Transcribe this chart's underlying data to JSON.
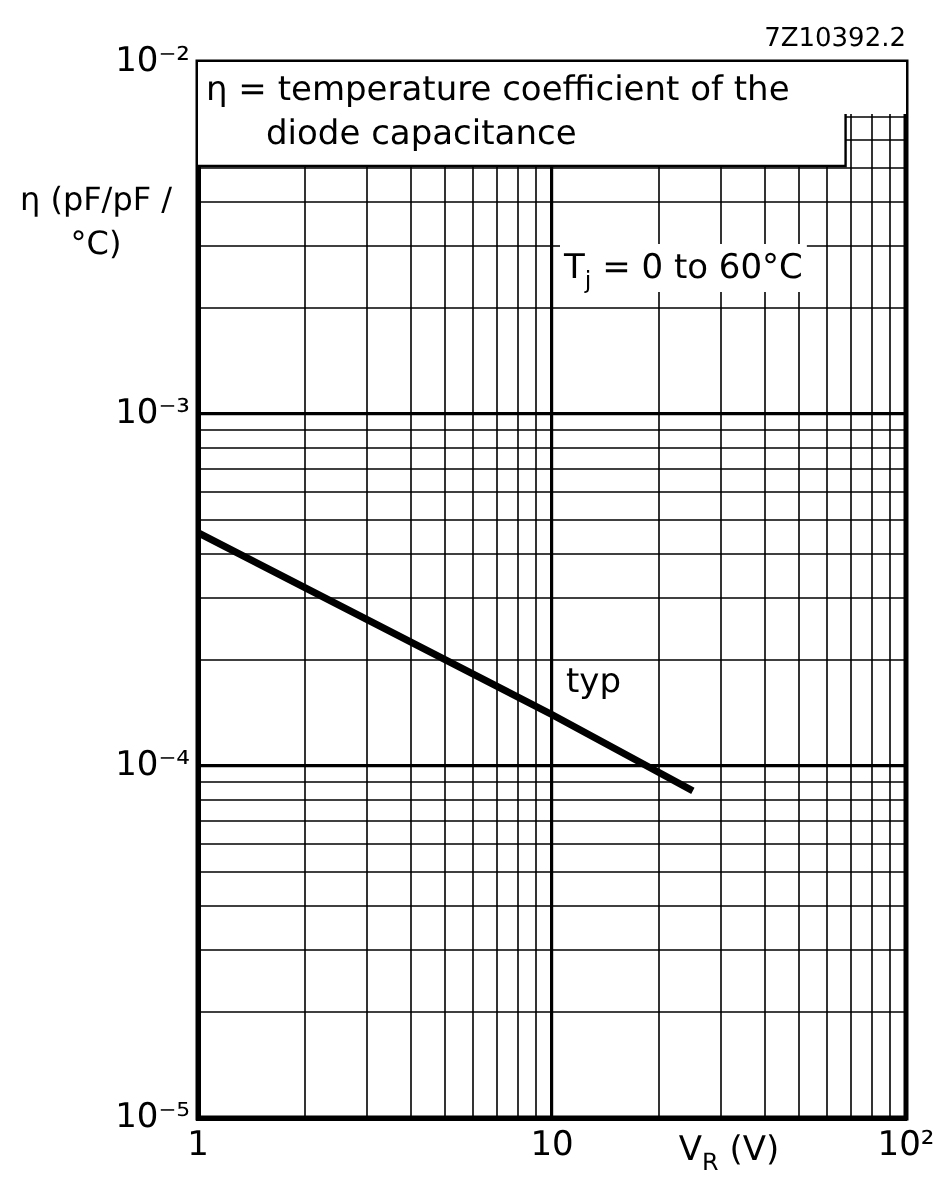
{
  "chart_data": {
    "type": "line",
    "xlabel": "V$_{R}$ (V)",
    "ylabel": "η (pF/pF / °C)",
    "annotations": [
      "7Z10392.2",
      "η = temperature coefficient of the diode capacitance",
      "T$_{j}$ = 0 to 60°C",
      "typ"
    ],
    "series": [
      {
        "color": "#000000",
        "x": [
          1,
          10,
          25
        ],
        "values": [
          0.00046,
          0.00014,
          8.5e-05
        ]
      }
    ],
    "log": "xy",
    "grid": true,
    "legend": false,
    "marker": "none",
    "line_style": "solid",
    "xlim": [
      1,
      100
    ],
    "ylim": [
      1e-05,
      0.01
    ],
    "xticks": [
      1,
      {
        "value": 2,
        "label": null
      },
      {
        "value": 3,
        "label": null
      },
      {
        "value": 4,
        "label": null
      },
      {
        "value": 5,
        "label": null
      },
      {
        "value": 6,
        "label": null
      },
      {
        "value": 7,
        "label": null
      },
      {
        "value": 8,
        "label": null
      },
      {
        "value": 9,
        "label": null
      },
      10,
      {
        "value": 20,
        "label": null
      },
      {
        "value": 30,
        "label": null
      },
      {
        "value": 40,
        "label": null
      },
      {
        "value": 50,
        "label": null
      },
      {
        "value": 60,
        "label": null
      },
      {
        "value": 70,
        "label": null
      },
      {
        "value": 80,
        "label": null
      },
      {
        "value": 90,
        "label": null
      },
      {
        "value": 100,
        "label": "10²"
      }
    ],
    "yticks": [
      {
        "value": 1e-05,
        "label": "10⁻⁵"
      },
      {
        "value": 2e-05,
        "label": null
      },
      {
        "value": 3e-05,
        "label": null
      },
      {
        "value": 4e-05,
        "label": null
      },
      {
        "value": 5e-05,
        "label": null
      },
      {
        "value": 6e-05,
        "label": null
      },
      {
        "value": 7e-05,
        "label": null
      },
      {
        "value": 8e-05,
        "label": null
      },
      {
        "value": 9e-05,
        "label": null
      },
      {
        "value": 0.0001,
        "label": "10⁻⁴"
      },
      {
        "value": 0.0002,
        "label": null
      },
      {
        "value": 0.0003,
        "label": null
      },
      {
        "value": 0.0004,
        "label": null
      },
      {
        "value": 0.0005,
        "label": null
      },
      {
        "value": 0.0006,
        "label": null
      },
      {
        "value": 0.0007,
        "label": null
      },
      {
        "value": 0.0008,
        "label": null
      },
      {
        "value": 0.0009,
        "label": null
      },
      {
        "value": 0.001,
        "label": "10⁻³"
      },
      {
        "value": 0.002,
        "label": null
      },
      {
        "value": 0.003,
        "label": null
      },
      {
        "value": 0.004,
        "label": null
      },
      {
        "value": 0.005,
        "label": null
      },
      {
        "value": 0.006,
        "label": null
      },
      {
        "value": 0.007,
        "label": null
      },
      {
        "value": 0.01,
        "label": "10⁻²"
      }
    ]
  }
}
